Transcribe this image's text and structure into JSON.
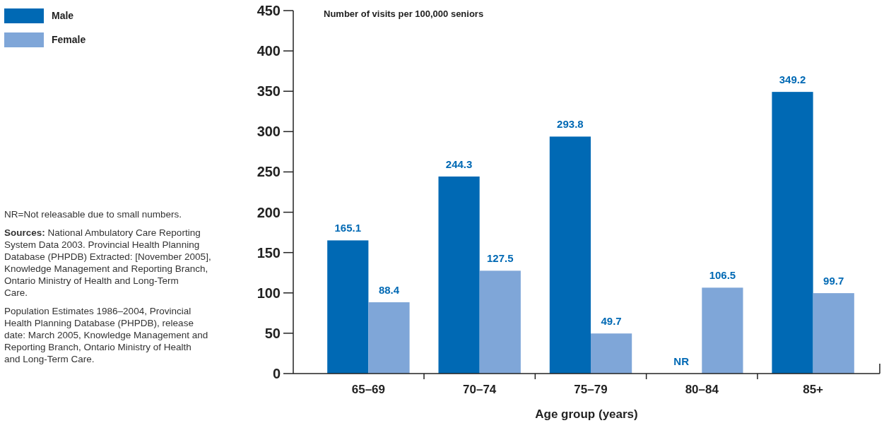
{
  "chart_data": {
    "type": "bar",
    "ylabel": "Number of visits per 100,000 seniors",
    "xlabel": "Age group (years)",
    "categories": [
      "65–69",
      "70–74",
      "75–79",
      "80–84",
      "85+"
    ],
    "series": [
      {
        "name": "Male",
        "color": "#0069b4",
        "values": [
          165.1,
          244.3,
          293.8,
          null,
          349.2
        ],
        "value_labels": [
          "165.1",
          "244.3",
          "293.8",
          "NR",
          "349.2"
        ]
      },
      {
        "name": "Female",
        "color": "#7fa6d8",
        "values": [
          88.4,
          127.5,
          49.7,
          106.5,
          99.7
        ],
        "value_labels": [
          "88.4",
          "127.5",
          "49.7",
          "106.5",
          "99.7"
        ]
      }
    ],
    "ylim": [
      0,
      450
    ],
    "yticks": [
      0,
      50,
      100,
      150,
      200,
      250,
      300,
      350,
      400,
      450
    ],
    "grid": false,
    "legend": "top left",
    "annotations": [
      "NR=Not releasable due to small numbers.",
      "Sources: National Ambulatory Care Reporting System Data 2003. Provincial Health Planning Database (PHPDB) Extracted: [November 2005], Knowledge Management and Reporting Branch, Ontario Ministry of Health and Long-Term Care.",
      "Population Estimates 1986–2004, Provincial Health Planning Database (PHPDB), release date: March 2005, Knowledge Management and Reporting Branch, Ontario Ministry of Health and Long-Term Care."
    ]
  }
}
